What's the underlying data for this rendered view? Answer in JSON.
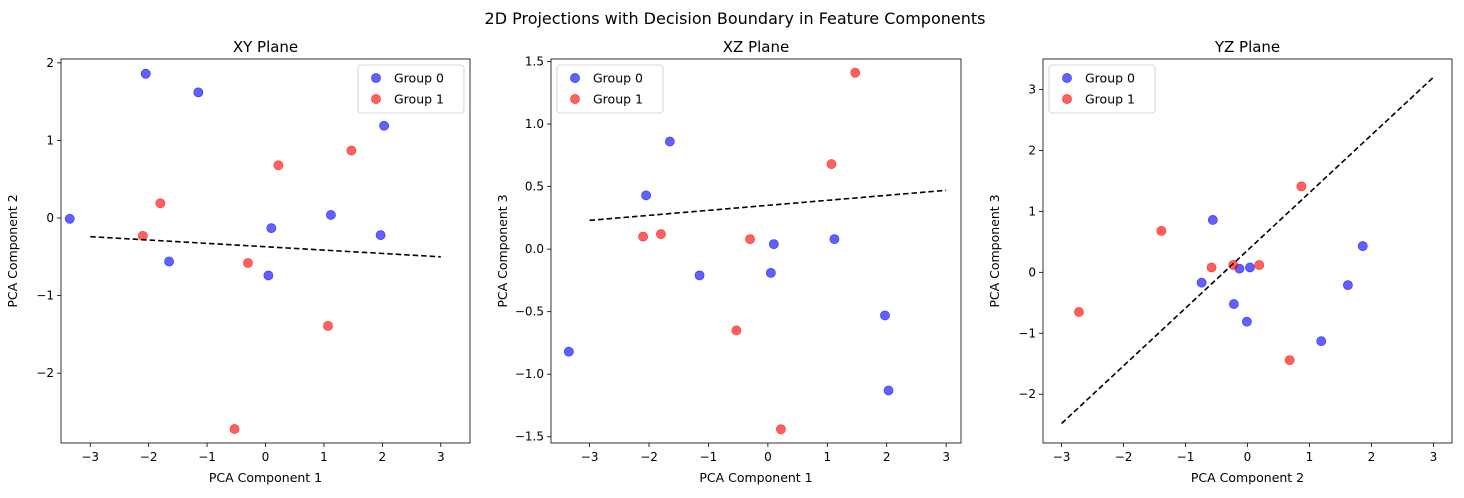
{
  "figure_title": "2D Projections with Decision Boundary in Feature Components",
  "colors": {
    "group0": "#0000ff",
    "group1": "#ff0000",
    "boundary": "#000000"
  },
  "chart_data": [
    {
      "type": "scatter",
      "title": "XY Plane",
      "xlabel": "PCA Component 1",
      "ylabel": "PCA Component 2",
      "xlim": [
        -3.5,
        3.5
      ],
      "ylim": [
        -2.9,
        2.05
      ],
      "xticks": [
        -3,
        -2,
        -1,
        0,
        1,
        2,
        3
      ],
      "yticks": [
        -2,
        -1,
        0,
        1,
        2
      ],
      "legend_position": "top-right",
      "series": [
        {
          "name": "Group 0",
          "color": "group0",
          "x": [
            -3.35,
            -2.05,
            -1.15,
            -1.65,
            0.1,
            0.05,
            1.12,
            1.97,
            2.03
          ],
          "y": [
            -0.01,
            1.86,
            1.62,
            -0.56,
            -0.13,
            -0.74,
            0.04,
            -0.22,
            1.19
          ]
        },
        {
          "name": "Group 1",
          "color": "group1",
          "x": [
            -2.1,
            -1.8,
            -0.53,
            -0.3,
            0.22,
            1.07,
            1.47
          ],
          "y": [
            -0.23,
            0.19,
            -2.72,
            -0.58,
            0.68,
            -1.39,
            0.87
          ]
        }
      ],
      "boundary": {
        "x": [
          -3,
          3
        ],
        "y": [
          -0.24,
          -0.5
        ]
      }
    },
    {
      "type": "scatter",
      "title": "XZ Plane",
      "xlabel": "PCA Component 1",
      "ylabel": "PCA Component 3",
      "xlim": [
        -3.65,
        3.25
      ],
      "ylim": [
        -1.55,
        1.52
      ],
      "xticks": [
        -3,
        -2,
        -1,
        0,
        1,
        2,
        3
      ],
      "yticks": [
        -1.5,
        -1.0,
        -0.5,
        0.0,
        0.5,
        1.0,
        1.5
      ],
      "legend_position": "top-left",
      "series": [
        {
          "name": "Group 0",
          "color": "group0",
          "x": [
            -3.35,
            -2.05,
            -1.65,
            -1.15,
            0.05,
            0.1,
            1.12,
            1.97,
            2.03
          ],
          "y": [
            -0.82,
            0.43,
            0.86,
            -0.21,
            -0.19,
            0.04,
            0.08,
            -0.53,
            -1.13
          ]
        },
        {
          "name": "Group 1",
          "color": "group1",
          "x": [
            -2.1,
            -1.8,
            -0.53,
            -0.3,
            0.22,
            1.07,
            1.47
          ],
          "y": [
            0.1,
            0.12,
            -0.65,
            0.08,
            -1.44,
            0.68,
            1.41
          ]
        }
      ],
      "boundary": {
        "x": [
          -3,
          3
        ],
        "y": [
          0.23,
          0.47
        ]
      }
    },
    {
      "type": "scatter",
      "title": "YZ Plane",
      "xlabel": "PCA Component 2",
      "ylabel": "PCA Component 3",
      "xlim": [
        -3.3,
        3.3
      ],
      "ylim": [
        -2.8,
        3.5
      ],
      "xticks": [
        -3,
        -2,
        -1,
        0,
        1,
        2,
        3
      ],
      "yticks": [
        -2,
        -1,
        0,
        1,
        2,
        3
      ],
      "legend_position": "top-left",
      "series": [
        {
          "name": "Group 0",
          "color": "group0",
          "x": [
            -0.74,
            -0.56,
            -0.22,
            -0.13,
            -0.01,
            0.04,
            1.19,
            1.62,
            1.86
          ],
          "y": [
            -0.17,
            0.86,
            -0.52,
            0.06,
            -0.81,
            0.08,
            -1.13,
            -0.21,
            0.43
          ]
        },
        {
          "name": "Group 1",
          "color": "group1",
          "x": [
            -2.72,
            -1.39,
            -0.58,
            -0.23,
            0.19,
            0.68,
            0.87
          ],
          "y": [
            -0.65,
            0.68,
            0.08,
            0.12,
            0.12,
            -1.44,
            1.41
          ]
        }
      ],
      "boundary": {
        "x": [
          -3,
          3
        ],
        "y": [
          -2.48,
          3.2
        ]
      }
    }
  ]
}
